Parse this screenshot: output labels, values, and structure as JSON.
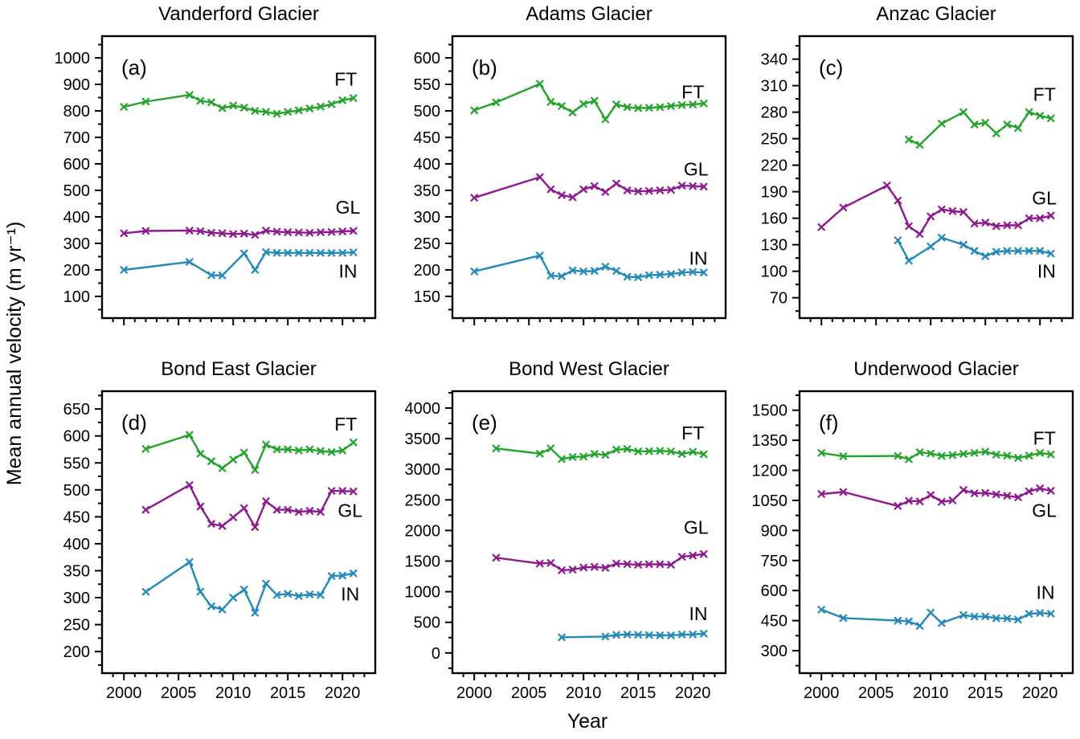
{
  "figure": {
    "ylabel": "Mean annual velocity (m yr⁻¹)",
    "xlabel": "Year",
    "background": "#ffffff",
    "series_colors": {
      "FT": "#22a32b",
      "GL": "#8e198e",
      "IN": "#2289b8"
    }
  },
  "chart_data": [
    {
      "id": "a",
      "letter": "(a)",
      "title": "Vanderford Glacier",
      "type": "line",
      "xlim": [
        1998,
        2023
      ],
      "xticks": [
        2000,
        2005,
        2010,
        2015,
        2020
      ],
      "ylim": [
        18,
        1082
      ],
      "yticks": [
        100,
        200,
        300,
        400,
        500,
        600,
        700,
        800,
        900,
        1000
      ],
      "series": [
        {
          "name": "FT",
          "color": "#22a32b",
          "x": [
            2000,
            2002,
            2006,
            2007,
            2008,
            2009,
            2010,
            2011,
            2012,
            2013,
            2014,
            2015,
            2016,
            2017,
            2018,
            2019,
            2020,
            2021
          ],
          "y": [
            815,
            835,
            860,
            838,
            832,
            810,
            820,
            812,
            800,
            796,
            789,
            796,
            802,
            809,
            816,
            825,
            840,
            848
          ],
          "label": {
            "text": "FT",
            "x": 2020.3,
            "y": 920
          }
        },
        {
          "name": "GL",
          "color": "#8e198e",
          "x": [
            2000,
            2002,
            2006,
            2007,
            2008,
            2009,
            2010,
            2011,
            2012,
            2013,
            2014,
            2015,
            2016,
            2017,
            2018,
            2019,
            2020,
            2021
          ],
          "y": [
            338,
            347,
            348,
            346,
            340,
            338,
            335,
            337,
            332,
            348,
            344,
            342,
            341,
            340,
            342,
            343,
            345,
            347
          ],
          "label": {
            "text": "GL",
            "x": 2020.5,
            "y": 436
          }
        },
        {
          "name": "IN",
          "color": "#2289b8",
          "x": [
            2000,
            2006,
            2008,
            2009,
            2011,
            2012,
            2013,
            2014,
            2015,
            2016,
            2017,
            2018,
            2019,
            2020,
            2021
          ],
          "y": [
            200,
            230,
            180,
            179,
            262,
            200,
            267,
            264,
            264,
            264,
            264,
            264,
            264,
            264,
            266
          ],
          "label": {
            "text": "IN",
            "x": 2020.5,
            "y": 196
          }
        }
      ]
    },
    {
      "id": "b",
      "letter": "(b)",
      "title": "Adams Glacier",
      "type": "line",
      "xlim": [
        1998,
        2023
      ],
      "xticks": [
        2000,
        2005,
        2010,
        2015,
        2020
      ],
      "ylim": [
        109,
        641
      ],
      "yticks": [
        150,
        200,
        250,
        300,
        350,
        400,
        450,
        500,
        550,
        600
      ],
      "series": [
        {
          "name": "FT",
          "color": "#22a32b",
          "x": [
            2000,
            2002,
            2006,
            2007,
            2008,
            2009,
            2010,
            2011,
            2012,
            2013,
            2014,
            2015,
            2016,
            2017,
            2018,
            2019,
            2020,
            2021
          ],
          "y": [
            501,
            516,
            551,
            517,
            509,
            497,
            513,
            519,
            484,
            512,
            507,
            505,
            506,
            507,
            509,
            511,
            512,
            514
          ],
          "label": {
            "text": "FT",
            "x": 2020.0,
            "y": 536
          }
        },
        {
          "name": "GL",
          "color": "#8e198e",
          "x": [
            2000,
            2006,
            2007,
            2008,
            2009,
            2010,
            2011,
            2012,
            2013,
            2014,
            2015,
            2016,
            2017,
            2018,
            2019,
            2020,
            2021
          ],
          "y": [
            336,
            375,
            352,
            341,
            337,
            352,
            358,
            347,
            363,
            350,
            348,
            349,
            350,
            351,
            359,
            358,
            357
          ],
          "label": {
            "text": "GL",
            "x": 2020.3,
            "y": 390
          }
        },
        {
          "name": "IN",
          "color": "#2289b8",
          "x": [
            2000,
            2006,
            2007,
            2008,
            2009,
            2010,
            2011,
            2012,
            2013,
            2014,
            2015,
            2016,
            2017,
            2018,
            2019,
            2020,
            2021
          ],
          "y": [
            197,
            227,
            189,
            188,
            199,
            197,
            198,
            206,
            198,
            187,
            186,
            190,
            191,
            192,
            195,
            196,
            195
          ],
          "label": {
            "text": "IN",
            "x": 2020.5,
            "y": 222
          }
        }
      ]
    },
    {
      "id": "c",
      "letter": "(c)",
      "title": "Anzac Glacier",
      "type": "line",
      "xlim": [
        1998,
        2023
      ],
      "xticks": [
        2000,
        2005,
        2010,
        2015,
        2020
      ],
      "ylim": [
        47,
        366
      ],
      "yticks": [
        70,
        100,
        130,
        160,
        190,
        220,
        250,
        280,
        310,
        340
      ],
      "series": [
        {
          "name": "FT",
          "color": "#22a32b",
          "x": [
            2008,
            2009,
            2011,
            2013,
            2014,
            2015,
            2016,
            2017,
            2018,
            2019,
            2020,
            2021
          ],
          "y": [
            249,
            243,
            267,
            280,
            266,
            268,
            256,
            266,
            262,
            280,
            276,
            273
          ],
          "label": {
            "text": "FT",
            "x": 2020.4,
            "y": 300
          }
        },
        {
          "name": "GL",
          "color": "#8e198e",
          "x": [
            2000,
            2002,
            2006,
            2007,
            2008,
            2009,
            2010,
            2011,
            2012,
            2013,
            2014,
            2015,
            2016,
            2017,
            2018,
            2019,
            2020,
            2021
          ],
          "y": [
            150,
            172,
            197,
            180,
            151,
            142,
            162,
            170,
            168,
            167,
            154,
            155,
            151,
            152,
            152,
            160,
            160,
            163
          ],
          "label": {
            "text": "GL",
            "x": 2020.4,
            "y": 183
          }
        },
        {
          "name": "IN",
          "color": "#2289b8",
          "x": [
            2007,
            2008,
            2010,
            2011,
            2013,
            2014,
            2015,
            2016,
            2017,
            2018,
            2019,
            2020,
            2021
          ],
          "y": [
            135,
            112,
            128,
            138,
            130,
            123,
            117,
            122,
            123,
            123,
            123,
            123,
            120
          ],
          "label": {
            "text": "IN",
            "x": 2020.6,
            "y": 100
          }
        }
      ]
    },
    {
      "id": "d",
      "letter": "(d)",
      "title": "Bond East Glacier",
      "type": "line",
      "xlim": [
        1998,
        2023
      ],
      "xticks": [
        2000,
        2005,
        2010,
        2015,
        2020
      ],
      "ylim": [
        160,
        683
      ],
      "yticks": [
        200,
        250,
        300,
        350,
        400,
        450,
        500,
        550,
        600,
        650
      ],
      "series": [
        {
          "name": "FT",
          "color": "#22a32b",
          "x": [
            2002,
            2006,
            2007,
            2008,
            2009,
            2010,
            2011,
            2012,
            2013,
            2014,
            2015,
            2016,
            2017,
            2018,
            2019,
            2020,
            2021
          ],
          "y": [
            576,
            602,
            567,
            553,
            540,
            556,
            569,
            537,
            584,
            575,
            575,
            573,
            575,
            572,
            570,
            573,
            588
          ],
          "label": {
            "text": "FT",
            "x": 2020.3,
            "y": 622
          }
        },
        {
          "name": "GL",
          "color": "#8e198e",
          "x": [
            2002,
            2006,
            2007,
            2008,
            2009,
            2010,
            2011,
            2012,
            2013,
            2014,
            2015,
            2016,
            2017,
            2018,
            2019,
            2020,
            2021
          ],
          "y": [
            463,
            509,
            469,
            437,
            433,
            449,
            466,
            431,
            479,
            463,
            463,
            459,
            461,
            459,
            498,
            498,
            497
          ],
          "label": {
            "text": "GL",
            "x": 2020.7,
            "y": 462
          }
        },
        {
          "name": "IN",
          "color": "#2289b8",
          "x": [
            2002,
            2006,
            2007,
            2008,
            2009,
            2010,
            2011,
            2012,
            2013,
            2014,
            2015,
            2016,
            2017,
            2018,
            2019,
            2020,
            2021
          ],
          "y": [
            311,
            366,
            311,
            284,
            278,
            300,
            315,
            272,
            326,
            305,
            307,
            303,
            306,
            305,
            340,
            341,
            345
          ],
          "label": {
            "text": "IN",
            "x": 2020.7,
            "y": 307
          }
        }
      ]
    },
    {
      "id": "e",
      "letter": "(e)",
      "title": "Bond West Glacier",
      "type": "line",
      "xlim": [
        1998,
        2023
      ],
      "xticks": [
        2000,
        2005,
        2010,
        2015,
        2020
      ],
      "ylim": [
        -330,
        4275
      ],
      "yticks": [
        0,
        500,
        1000,
        1500,
        2000,
        2500,
        3000,
        3500,
        4000
      ],
      "series": [
        {
          "name": "FT",
          "color": "#22a32b",
          "x": [
            2002,
            2006,
            2007,
            2008,
            2009,
            2010,
            2011,
            2012,
            2013,
            2014,
            2015,
            2016,
            2017,
            2018,
            2019,
            2020,
            2021
          ],
          "y": [
            3340,
            3255,
            3340,
            3165,
            3200,
            3205,
            3250,
            3235,
            3320,
            3330,
            3290,
            3295,
            3300,
            3290,
            3250,
            3285,
            3245
          ],
          "label": {
            "text": "FT",
            "x": 2020.0,
            "y": 3590
          }
        },
        {
          "name": "GL",
          "color": "#8e198e",
          "x": [
            2002,
            2006,
            2007,
            2008,
            2009,
            2010,
            2011,
            2012,
            2013,
            2014,
            2015,
            2016,
            2017,
            2018,
            2019,
            2020,
            2021
          ],
          "y": [
            1555,
            1460,
            1470,
            1350,
            1360,
            1395,
            1405,
            1390,
            1460,
            1450,
            1440,
            1448,
            1448,
            1440,
            1570,
            1590,
            1615
          ],
          "label": {
            "text": "GL",
            "x": 2020.3,
            "y": 2050
          }
        },
        {
          "name": "IN",
          "color": "#2289b8",
          "x": [
            2008,
            2012,
            2013,
            2014,
            2015,
            2016,
            2017,
            2018,
            2019,
            2020,
            2021
          ],
          "y": [
            255,
            268,
            295,
            300,
            296,
            292,
            288,
            285,
            300,
            302,
            315
          ],
          "label": {
            "text": "IN",
            "x": 2020.5,
            "y": 640
          }
        }
      ]
    },
    {
      "id": "f",
      "letter": "(f)",
      "title": "Underwood Glacier",
      "type": "line",
      "xlim": [
        1998,
        2023
      ],
      "xticks": [
        2000,
        2005,
        2010,
        2015,
        2020
      ],
      "ylim": [
        188,
        1595
      ],
      "yticks": [
        300,
        450,
        600,
        750,
        900,
        1050,
        1200,
        1350,
        1500
      ],
      "series": [
        {
          "name": "FT",
          "color": "#22a32b",
          "x": [
            2000,
            2002,
            2007,
            2008,
            2009,
            2010,
            2011,
            2012,
            2013,
            2014,
            2015,
            2016,
            2017,
            2018,
            2019,
            2020,
            2021
          ],
          "y": [
            1287,
            1270,
            1272,
            1255,
            1290,
            1284,
            1272,
            1276,
            1282,
            1287,
            1293,
            1278,
            1273,
            1262,
            1273,
            1287,
            1279
          ],
          "label": {
            "text": "FT",
            "x": 2020.4,
            "y": 1360
          }
        },
        {
          "name": "GL",
          "color": "#8e198e",
          "x": [
            2000,
            2002,
            2007,
            2008,
            2009,
            2010,
            2011,
            2012,
            2013,
            2014,
            2015,
            2016,
            2017,
            2018,
            2019,
            2020,
            2021
          ],
          "y": [
            1082,
            1092,
            1022,
            1048,
            1045,
            1077,
            1043,
            1050,
            1102,
            1085,
            1087,
            1080,
            1073,
            1065,
            1095,
            1110,
            1098
          ],
          "label": {
            "text": "GL",
            "x": 2020.4,
            "y": 1000
          }
        },
        {
          "name": "IN",
          "color": "#2289b8",
          "x": [
            2000,
            2002,
            2007,
            2008,
            2009,
            2010,
            2011,
            2013,
            2014,
            2015,
            2016,
            2017,
            2018,
            2019,
            2020,
            2021
          ],
          "y": [
            505,
            463,
            450,
            446,
            424,
            490,
            438,
            478,
            470,
            471,
            462,
            461,
            455,
            484,
            488,
            485
          ],
          "label": {
            "text": "IN",
            "x": 2020.5,
            "y": 590
          }
        }
      ]
    }
  ]
}
